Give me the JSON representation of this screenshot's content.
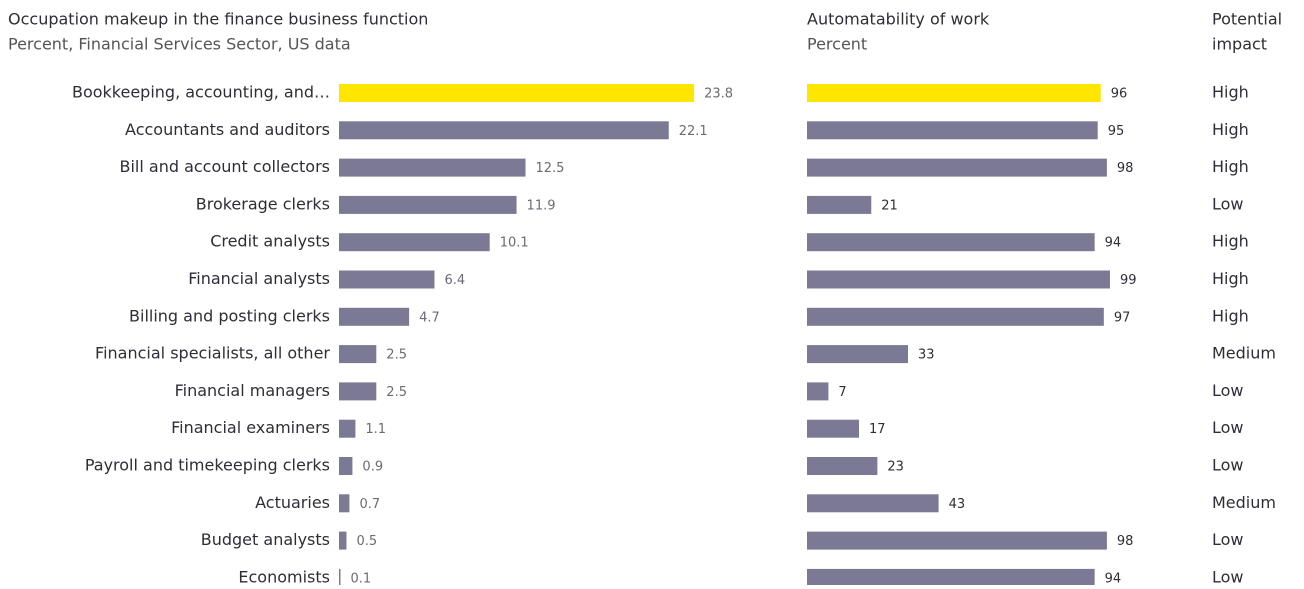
{
  "chart_data": [
    {
      "type": "bar",
      "orientation": "horizontal",
      "title": "Occupation makeup in the finance business function",
      "subtitle": "Percent, Financial Services Sector, US data",
      "categories": [
        "Bookkeeping, accounting, and…",
        "Accountants and auditors",
        "Bill and account collectors",
        "Brokerage clerks",
        "Credit analysts",
        "Financial analysts",
        "Billing and posting clerks",
        "Financial specialists, all other",
        "Financial managers",
        "Financial examiners",
        "Payroll and timekeeping clerks",
        "Actuaries",
        "Budget analysts",
        "Economists"
      ],
      "values": [
        23.8,
        22.1,
        12.5,
        11.9,
        10.1,
        6.4,
        4.7,
        2.5,
        2.5,
        1.1,
        0.9,
        0.7,
        0.5,
        0.1
      ],
      "colors": [
        "#ffe600",
        "#7b7993",
        "#7b7993",
        "#7b7993",
        "#7b7993",
        "#7b7993",
        "#7b7993",
        "#7b7993",
        "#7b7993",
        "#7b7993",
        "#7b7993",
        "#7b7993",
        "#7b7993",
        "#7b7993"
      ]
    },
    {
      "type": "bar",
      "orientation": "horizontal",
      "title": "Automatability of work",
      "subtitle": "Percent",
      "values": [
        96,
        95,
        98,
        21,
        94,
        99,
        97,
        33,
        7,
        17,
        23,
        43,
        98,
        94
      ],
      "colors": [
        "#ffe600",
        "#7b7993",
        "#7b7993",
        "#7b7993",
        "#7b7993",
        "#7b7993",
        "#7b7993",
        "#7b7993",
        "#7b7993",
        "#7b7993",
        "#7b7993",
        "#7b7993",
        "#7b7993",
        "#7b7993"
      ]
    }
  ],
  "impact": {
    "title": [
      "Potential",
      "impact"
    ],
    "values": [
      "High",
      "High",
      "High",
      "Low",
      "High",
      "High",
      "High",
      "Medium",
      "Low",
      "Low",
      "Low",
      "Medium",
      "Low",
      "Low"
    ]
  }
}
